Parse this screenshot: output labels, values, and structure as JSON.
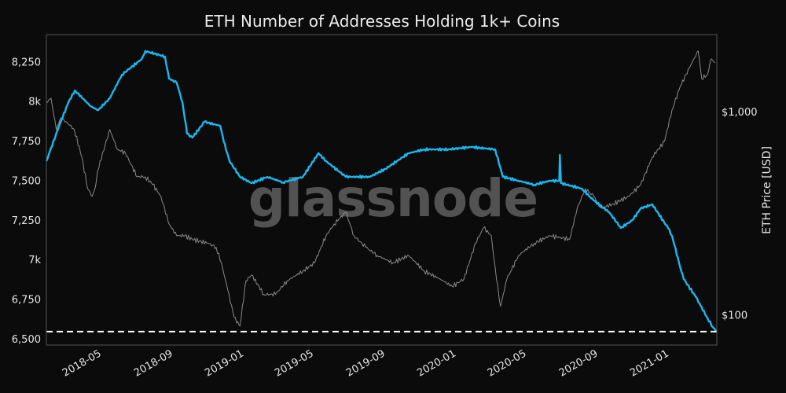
{
  "chart_data": {
    "type": "line",
    "title": "ETH Number of Addresses Holding 1k+ Coins",
    "watermark": "glassnode",
    "xlabel": "",
    "ylabel": "",
    "y2label": "ETH Price [USD]",
    "x_range": [
      "2018-01-31",
      "2021-03-29"
    ],
    "xticks": [
      "2018-05",
      "2018-09",
      "2019-01",
      "2019-05",
      "2019-09",
      "2020-01",
      "2020-05",
      "2020-09",
      "2021-01"
    ],
    "ylim": [
      6460,
      8420
    ],
    "yticks": [
      {
        "value": 6500,
        "label": "6,500"
      },
      {
        "value": 6750,
        "label": "6,750"
      },
      {
        "value": 7000,
        "label": "7k"
      },
      {
        "value": 7250,
        "label": "7,250"
      },
      {
        "value": 7500,
        "label": "7,500"
      },
      {
        "value": 7750,
        "label": "7,750"
      },
      {
        "value": 8000,
        "label": "8k"
      },
      {
        "value": 8250,
        "label": "8,250"
      }
    ],
    "y2_scale": "log",
    "y2lim": [
      71,
      2390
    ],
    "y2ticks": [
      {
        "value": 100,
        "label": "$100"
      },
      {
        "value": 1000,
        "label": "$1,000"
      }
    ],
    "grid": false,
    "reference_line": {
      "value": 6545,
      "style": "dashed",
      "color": "#ffffff"
    },
    "colors": {
      "background": "#0b0b0b",
      "addresses": "#1ab8f0",
      "price": "#8a8a8a"
    },
    "series": [
      {
        "axis": "left",
        "points": [
          [
            "2018-01-31",
            7621
          ],
          [
            "2018-02-22",
            7844
          ],
          [
            "2018-03-10",
            7993
          ],
          [
            "2018-03-21",
            8067
          ],
          [
            "2018-04-17",
            7968
          ],
          [
            "2018-04-30",
            7943
          ],
          [
            "2018-05-20",
            8018
          ],
          [
            "2018-06-10",
            8167
          ],
          [
            "2018-07-14",
            8266
          ],
          [
            "2018-07-20",
            8316
          ],
          [
            "2018-08-23",
            8281
          ],
          [
            "2018-08-30",
            8142
          ],
          [
            "2018-09-12",
            8117
          ],
          [
            "2018-09-22",
            7993
          ],
          [
            "2018-09-30",
            7794
          ],
          [
            "2018-10-09",
            7770
          ],
          [
            "2018-10-30",
            7869
          ],
          [
            "2018-11-26",
            7844
          ],
          [
            "2018-12-02",
            7745
          ],
          [
            "2018-12-12",
            7621
          ],
          [
            "2018-12-30",
            7522
          ],
          [
            "2019-01-19",
            7482
          ],
          [
            "2019-02-15",
            7522
          ],
          [
            "2019-03-14",
            7487
          ],
          [
            "2019-04-17",
            7522
          ],
          [
            "2019-05-14",
            7671
          ],
          [
            "2019-05-27",
            7621
          ],
          [
            "2019-06-30",
            7522
          ],
          [
            "2019-08-10",
            7522
          ],
          [
            "2019-09-06",
            7572
          ],
          [
            "2019-10-16",
            7671
          ],
          [
            "2019-11-12",
            7695
          ],
          [
            "2019-12-23",
            7695
          ],
          [
            "2020-02-01",
            7710
          ],
          [
            "2020-03-13",
            7695
          ],
          [
            "2020-03-26",
            7522
          ],
          [
            "2020-04-22",
            7497
          ],
          [
            "2020-05-19",
            7472
          ],
          [
            "2020-06-15",
            7497
          ],
          [
            "2020-07-01",
            7497
          ],
          [
            "2020-07-02",
            7661
          ],
          [
            "2020-07-04",
            7482
          ],
          [
            "2020-08-09",
            7447
          ],
          [
            "2020-08-29",
            7373
          ],
          [
            "2020-09-25",
            7298
          ],
          [
            "2020-10-15",
            7199
          ],
          [
            "2020-11-04",
            7249
          ],
          [
            "2020-11-18",
            7323
          ],
          [
            "2020-12-08",
            7348
          ],
          [
            "2021-01-04",
            7199
          ],
          [
            "2021-01-11",
            7150
          ],
          [
            "2021-01-25",
            6951
          ],
          [
            "2021-01-31",
            6877
          ],
          [
            "2021-02-21",
            6763
          ],
          [
            "2021-03-13",
            6629
          ],
          [
            "2021-03-22",
            6574
          ],
          [
            "2021-03-29",
            6548
          ]
        ]
      },
      {
        "axis": "right",
        "points": [
          [
            "2018-01-31",
            1113
          ],
          [
            "2018-02-08",
            1163
          ],
          [
            "2018-02-17",
            815
          ],
          [
            "2018-02-25",
            932
          ],
          [
            "2018-03-06",
            891
          ],
          [
            "2018-03-20",
            815
          ],
          [
            "2018-04-02",
            597
          ],
          [
            "2018-04-12",
            418
          ],
          [
            "2018-04-20",
            383
          ],
          [
            "2018-04-26",
            437
          ],
          [
            "2018-04-29",
            509
          ],
          [
            "2018-05-12",
            682
          ],
          [
            "2018-05-20",
            815
          ],
          [
            "2018-06-02",
            653
          ],
          [
            "2018-06-16",
            624
          ],
          [
            "2018-07-06",
            478
          ],
          [
            "2018-07-20",
            478
          ],
          [
            "2018-08-02",
            437
          ],
          [
            "2018-08-16",
            383
          ],
          [
            "2018-08-30",
            280
          ],
          [
            "2018-09-12",
            245
          ],
          [
            "2018-09-26",
            245
          ],
          [
            "2018-10-09",
            235
          ],
          [
            "2018-11-05",
            225
          ],
          [
            "2018-11-19",
            215
          ],
          [
            "2018-11-28",
            180
          ],
          [
            "2018-12-09",
            132
          ],
          [
            "2018-12-20",
            97
          ],
          [
            "2018-12-30",
            88
          ],
          [
            "2019-01-09",
            147
          ],
          [
            "2019-01-19",
            157
          ],
          [
            "2019-02-09",
            126
          ],
          [
            "2019-03-01",
            126
          ],
          [
            "2019-03-21",
            147
          ],
          [
            "2019-04-17",
            164
          ],
          [
            "2019-05-07",
            180
          ],
          [
            "2019-05-27",
            245
          ],
          [
            "2019-06-10",
            280
          ],
          [
            "2019-06-30",
            320
          ],
          [
            "2019-07-14",
            245
          ],
          [
            "2019-08-03",
            215
          ],
          [
            "2019-08-23",
            196
          ],
          [
            "2019-09-19",
            180
          ],
          [
            "2019-10-16",
            196
          ],
          [
            "2019-11-12",
            164
          ],
          [
            "2019-12-09",
            150
          ],
          [
            "2019-12-30",
            138
          ],
          [
            "2020-01-19",
            150
          ],
          [
            "2020-02-08",
            225
          ],
          [
            "2020-02-22",
            268
          ],
          [
            "2020-03-06",
            245
          ],
          [
            "2020-03-15",
            150
          ],
          [
            "2020-03-22",
            110
          ],
          [
            "2020-04-02",
            150
          ],
          [
            "2020-04-22",
            196
          ],
          [
            "2020-05-19",
            225
          ],
          [
            "2020-06-15",
            245
          ],
          [
            "2020-07-19",
            235
          ],
          [
            "2020-08-01",
            335
          ],
          [
            "2020-08-15",
            418
          ],
          [
            "2020-08-29",
            383
          ],
          [
            "2020-09-11",
            335
          ],
          [
            "2020-10-02",
            351
          ],
          [
            "2020-10-29",
            383
          ],
          [
            "2020-11-18",
            437
          ],
          [
            "2020-12-08",
            597
          ],
          [
            "2020-12-29",
            713
          ],
          [
            "2021-01-11",
            1018
          ],
          [
            "2021-01-25",
            1329
          ],
          [
            "2021-02-14",
            1735
          ],
          [
            "2021-02-25",
            1985
          ],
          [
            "2021-03-03",
            1452
          ],
          [
            "2021-03-13",
            1519
          ],
          [
            "2021-03-19",
            1815
          ],
          [
            "2021-03-26",
            1735
          ]
        ]
      }
    ]
  }
}
